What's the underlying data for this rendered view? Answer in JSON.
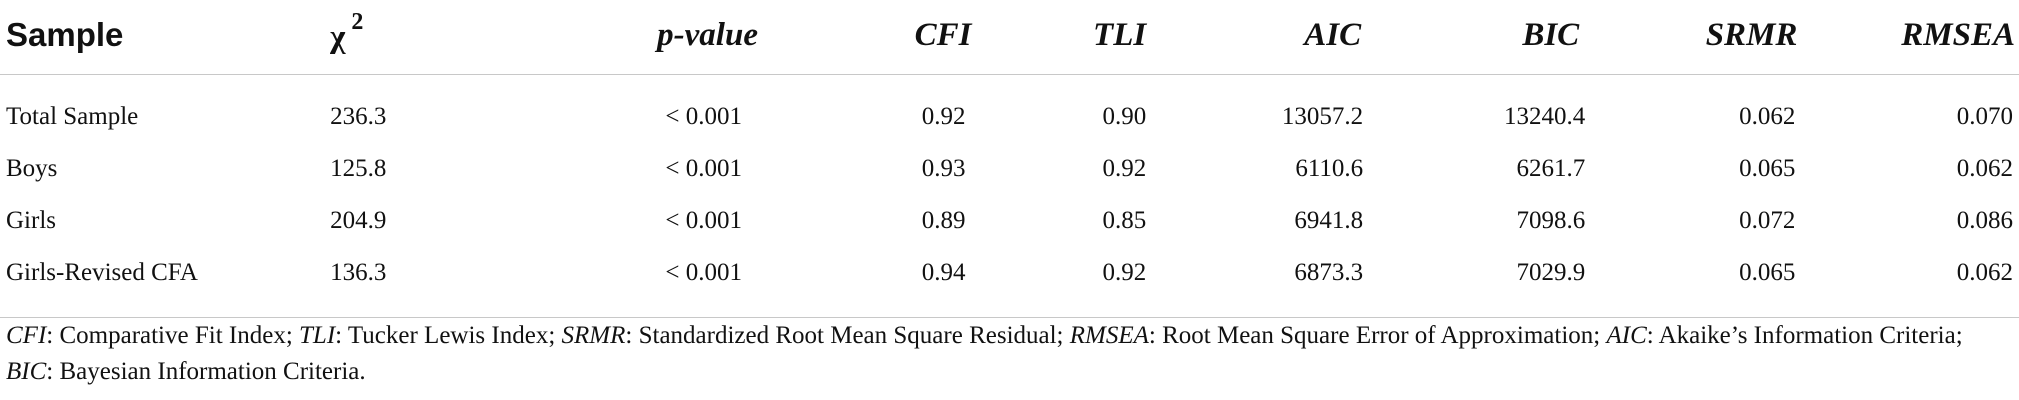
{
  "table": {
    "headers": {
      "sample": "Sample",
      "chi_symbol": "χ",
      "chi_power": "2",
      "p_value": "p-value",
      "cfi": "CFI",
      "tli": "TLI",
      "aic": "AIC",
      "bic": "BIC",
      "srmr": "SRMR",
      "rmsea": "RMSEA"
    },
    "rows": [
      {
        "sample": "Total Sample",
        "chi2": "236.3",
        "p_value": "< 0.001",
        "cfi": "0.92",
        "tli": "0.90",
        "aic": "13057.2",
        "bic": "13240.4",
        "srmr": "0.062",
        "rmsea": "0.070"
      },
      {
        "sample": "Boys",
        "chi2": "125.8",
        "p_value": "< 0.001",
        "cfi": "0.93",
        "tli": "0.92",
        "aic": "6110.6",
        "bic": "6261.7",
        "srmr": "0.065",
        "rmsea": "0.062"
      },
      {
        "sample": "Girls",
        "chi2": "204.9",
        "p_value": "< 0.001",
        "cfi": "0.89",
        "tli": "0.85",
        "aic": "6941.8",
        "bic": "7098.6",
        "srmr": "0.072",
        "rmsea": "0.086"
      },
      {
        "sample": "Girls-Revised CFA",
        "chi2": "136.3",
        "p_value": "< 0.001",
        "cfi": "0.94",
        "tli": "0.92",
        "aic": "6873.3",
        "bic": "7029.9",
        "srmr": "0.065",
        "rmsea": "0.062"
      }
    ]
  },
  "footnote": {
    "cfi_abbr": "CFI",
    "cfi_text": ": Comparative Fit Index; ",
    "tli_abbr": "TLI",
    "tli_text": ": Tucker Lewis Index; ",
    "srmr_abbr": "SRMR",
    "srmr_text": ": Standardized Root Mean Square Residual; ",
    "rmsea_abbr": "RMSEA",
    "rmsea_text": ": Root Mean Square Error of Approximation; ",
    "aic_abbr": "AIC",
    "aic_text": ": Akaike’s Information Criteria; ",
    "bic_abbr": "BIC",
    "bic_text": ": Bayesian Information Criteria."
  }
}
